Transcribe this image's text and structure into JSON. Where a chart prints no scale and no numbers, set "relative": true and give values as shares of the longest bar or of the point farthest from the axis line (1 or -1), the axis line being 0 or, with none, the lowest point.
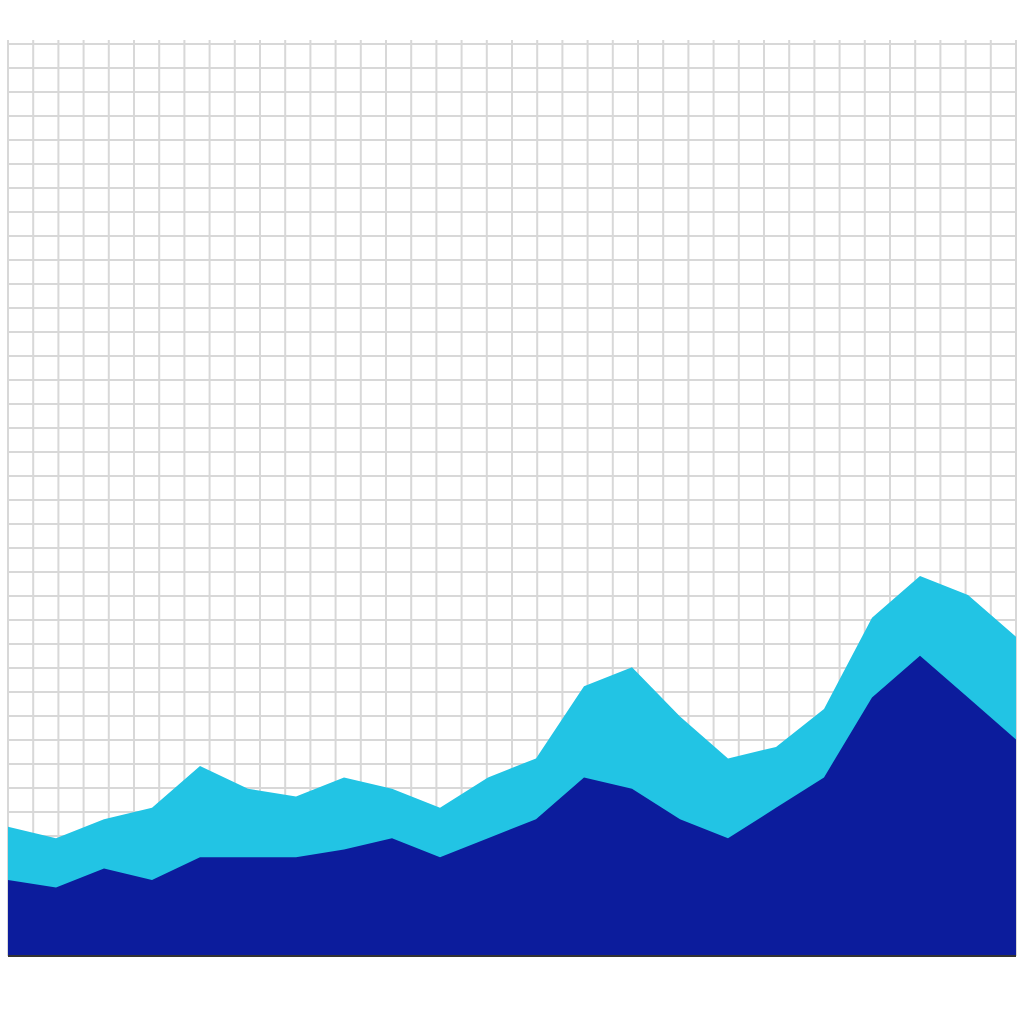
{
  "chart_data": {
    "type": "area",
    "relative": true,
    "grid": true,
    "categories": [
      null,
      null,
      null,
      null,
      null,
      null,
      null,
      null,
      null,
      null,
      null,
      null,
      null,
      null,
      null,
      null,
      null,
      null,
      null,
      null,
      null,
      null
    ],
    "series": [
      {
        "color": "#22c4e4",
        "values": [
          0.34,
          0.31,
          0.36,
          0.39,
          0.5,
          0.44,
          0.42,
          0.47,
          0.44,
          0.39,
          0.47,
          0.52,
          0.71,
          0.76,
          0.63,
          0.52,
          0.55,
          0.65,
          0.89,
          1,
          0.95,
          0.84
        ]
      },
      {
        "color": "#0c1c9c",
        "values": [
          0.2,
          0.18,
          0.23,
          0.2,
          0.26,
          0.26,
          0.26,
          0.28,
          0.31,
          0.26,
          0.31,
          0.36,
          0.47,
          0.44,
          0.36,
          0.31,
          0.39,
          0.47,
          0.68,
          0.79,
          0.68,
          0.57
        ]
      }
    ]
  }
}
